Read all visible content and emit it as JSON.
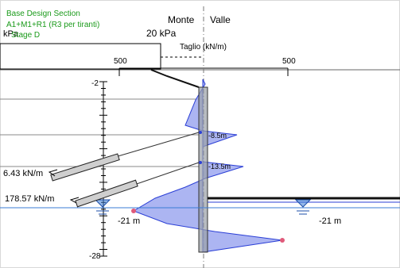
{
  "header": {
    "title": "Base Design Section",
    "combination": "A1+M1+R1 (R3 per tiranti)",
    "stage": "Stage D",
    "unit_fragment": "kPa"
  },
  "sides": {
    "left": "Monte",
    "right": "Valle"
  },
  "surcharge": {
    "label": "20 kPa"
  },
  "shear": {
    "title": "Taglio (kN/m)",
    "scale_left": "500",
    "scale_right": "500"
  },
  "depth_axis": {
    "top": "-2",
    "bottom": "-28"
  },
  "anchors": [
    {
      "label": "6.43 kN/m",
      "depth_label": "-8.5m"
    },
    {
      "label": "178.57 kN/m",
      "depth_label": "-13.5m"
    }
  ],
  "water_table": {
    "left": "-21 m",
    "right": "-21 m"
  },
  "colors": {
    "shear_fill": "#9da8f0",
    "shear_stroke": "#2b3fd6",
    "wall": "#9aa0a6",
    "label_green": "#1a9a1a",
    "water": "#3a7bd5",
    "extreme_marker": "#e05a7a"
  }
}
